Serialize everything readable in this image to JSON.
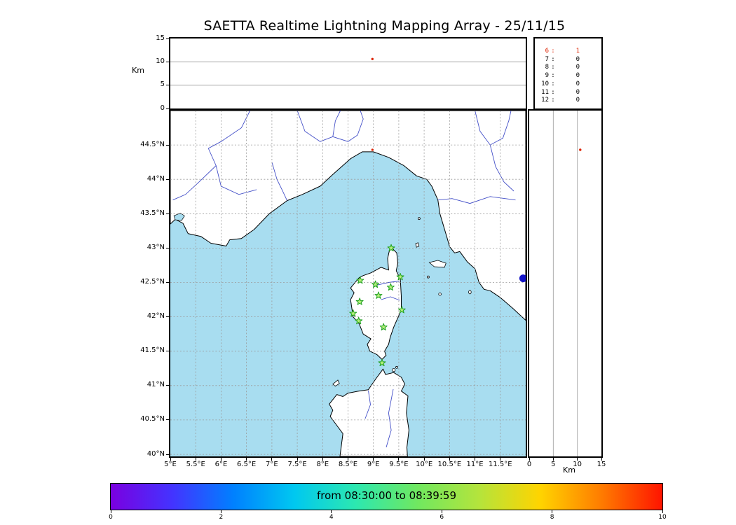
{
  "title": "SAETTA Realtime Lightning Mapping Array - 25/11/15",
  "colors": {
    "sea": "#a8ddf0",
    "land": "#ffffff",
    "coast": "#000000",
    "river": "#4450c8",
    "grid": "#9a9a9a",
    "station_edge": "#1fa01f",
    "station_fill": "#b4f07a",
    "source": "#dd2200",
    "blue_marker": "#1414c8"
  },
  "stats_box": {
    "separator": ":",
    "rows": [
      {
        "label": "6",
        "value": "1",
        "highlight": true
      },
      {
        "label": "7",
        "value": "0",
        "highlight": false
      },
      {
        "label": "8",
        "value": "0",
        "highlight": false
      },
      {
        "label": "9",
        "value": "0",
        "highlight": false
      },
      {
        "label": "10",
        "value": "0",
        "highlight": false
      },
      {
        "label": "11",
        "value": "0",
        "highlight": false
      },
      {
        "label": "12",
        "value": "0",
        "highlight": false
      }
    ]
  },
  "colorbar": {
    "label": "from 08:30:00 to 08:39:59",
    "ticks": [
      "0",
      "2",
      "4",
      "6",
      "8",
      "10"
    ],
    "gradient": [
      "#7a00e0",
      "#4433ff",
      "#0080ff",
      "#00c8f0",
      "#2ce8b0",
      "#70e860",
      "#b4e43c",
      "#ffd400",
      "#ff7c00",
      "#ff1400"
    ]
  },
  "chart_data": {
    "type": "scatter",
    "time_window": {
      "start": "08:30:00",
      "end": "08:39:59"
    },
    "panels": {
      "alt_lon": {
        "ylabel": "Km",
        "xlim": [
          5,
          12
        ],
        "ylim": [
          0,
          15
        ],
        "yticks": [
          {
            "v": 15,
            "label": "15"
          },
          {
            "v": 10,
            "label": "10"
          },
          {
            "v": 5,
            "label": "5"
          },
          {
            "v": 0,
            "label": "0"
          }
        ],
        "grid": [
          5,
          10
        ],
        "points": [
          {
            "lon": 8.98,
            "alt": 10.6
          }
        ]
      },
      "map": {
        "lon_lim": [
          5,
          12
        ],
        "lat_lim": [
          39.97,
          45.0
        ],
        "lon_ticks": [
          {
            "v": 5,
            "label": "5°E"
          },
          {
            "v": 5.5,
            "label": "5.5°E"
          },
          {
            "v": 6,
            "label": "6°E"
          },
          {
            "v": 6.5,
            "label": "6.5°E"
          },
          {
            "v": 7,
            "label": "7°E"
          },
          {
            "v": 7.5,
            "label": "7.5°E"
          },
          {
            "v": 8,
            "label": "8°E"
          },
          {
            "v": 8.5,
            "label": "8.5°E"
          },
          {
            "v": 9,
            "label": "9°E"
          },
          {
            "v": 9.5,
            "label": "9.5°E"
          },
          {
            "v": 10,
            "label": "10°E"
          },
          {
            "v": 10.5,
            "label": "10.5°E"
          },
          {
            "v": 11,
            "label": "11°E"
          },
          {
            "v": 11.5,
            "label": "11.5°E"
          }
        ],
        "lat_ticks": [
          {
            "v": 44.5,
            "label": "44.5°N"
          },
          {
            "v": 44,
            "label": "44°N"
          },
          {
            "v": 43.5,
            "label": "43.5°N"
          },
          {
            "v": 43,
            "label": "43°N"
          },
          {
            "v": 42.5,
            "label": "42.5°N"
          },
          {
            "v": 42,
            "label": "42°N"
          },
          {
            "v": 41.5,
            "label": "41.5°N"
          },
          {
            "v": 41,
            "label": "41°N"
          },
          {
            "v": 40.5,
            "label": "40.5°N"
          },
          {
            "v": 40,
            "label": "40°N"
          }
        ],
        "grid_lon": [
          5.5,
          6,
          6.5,
          7,
          7.5,
          8,
          8.5,
          9,
          9.5,
          10,
          10.5,
          11,
          11.5
        ],
        "grid_lat": [
          44.5,
          44,
          43.5,
          43,
          42.5,
          42,
          41.5,
          41,
          40.5,
          40
        ],
        "stations": [
          [
            9.35,
            43.0
          ],
          [
            8.74,
            42.53
          ],
          [
            9.04,
            42.47
          ],
          [
            9.34,
            42.43
          ],
          [
            9.53,
            42.58
          ],
          [
            8.73,
            42.22
          ],
          [
            9.1,
            42.31
          ],
          [
            8.6,
            42.05
          ],
          [
            8.71,
            41.94
          ],
          [
            9.56,
            42.1
          ],
          [
            9.2,
            41.85
          ],
          [
            9.17,
            41.33
          ]
        ],
        "sources": [
          {
            "lon": 8.98,
            "lat": 44.43
          }
        ],
        "blue_marker": {
          "lon": 11.95,
          "lat": 42.56
        }
      },
      "alt_lat": {
        "xlabel": "Km",
        "xlim": [
          0,
          15
        ],
        "xticks": [
          {
            "v": 0,
            "label": "0"
          },
          {
            "v": 5,
            "label": "5"
          },
          {
            "v": 10,
            "label": "10"
          },
          {
            "v": 15,
            "label": "15"
          }
        ],
        "grid": [
          5,
          10
        ],
        "points": [
          {
            "alt": 10.6,
            "lat": 44.43
          }
        ]
      }
    }
  }
}
